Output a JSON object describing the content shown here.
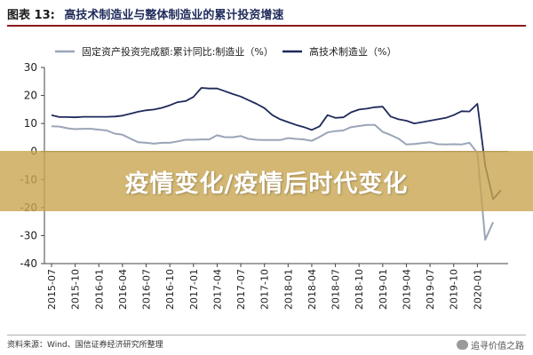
{
  "figure": {
    "number_label": "图表 13:",
    "title": "高技术制造业与整体制造业的累计投资增速"
  },
  "overlay_text": "疫情变化/疫情后时代变化",
  "source_text": "资料来源：Wind、国信证券经济研究所整理",
  "watermark_text": "追寻价值之路",
  "colors": {
    "series_fixed": "#9aa5b8",
    "series_hightech": "#1f2a5a",
    "accent_rule": "#8b1a1a"
  },
  "chart_data": {
    "type": "line",
    "title": "高技术制造业与整体制造业的累计投资增速",
    "ylim": [
      -40,
      30
    ],
    "yticks": [
      30,
      20,
      10,
      0,
      -10,
      -20,
      -30,
      -40
    ],
    "xticks": [
      "2015-07",
      "2015-10",
      "2016-01",
      "2016-04",
      "2016-07",
      "2016-10",
      "2017-01",
      "2017-04",
      "2017-07",
      "2017-10",
      "2018-01",
      "2018-04",
      "2018-07",
      "2018-10",
      "2019-01",
      "2019-04",
      "2019-07",
      "2019-10",
      "2020-01"
    ],
    "x": [
      "2015-07",
      "2015-08",
      "2015-09",
      "2015-10",
      "2015-11",
      "2015-12",
      "2016-01",
      "2016-02",
      "2016-03",
      "2016-04",
      "2016-05",
      "2016-06",
      "2016-07",
      "2016-08",
      "2016-09",
      "2016-10",
      "2016-11",
      "2016-12",
      "2017-01",
      "2017-02",
      "2017-03",
      "2017-04",
      "2017-05",
      "2017-06",
      "2017-07",
      "2017-08",
      "2017-09",
      "2017-10",
      "2017-11",
      "2017-12",
      "2018-01",
      "2018-02",
      "2018-03",
      "2018-04",
      "2018-05",
      "2018-06",
      "2018-07",
      "2018-08",
      "2018-09",
      "2018-10",
      "2018-11",
      "2018-12",
      "2019-01",
      "2019-02",
      "2019-03",
      "2019-04",
      "2019-05",
      "2019-06",
      "2019-07",
      "2019-08",
      "2019-09",
      "2019-10",
      "2019-11",
      "2019-12",
      "2020-01",
      "2020-02",
      "2020-03",
      "2020-04"
    ],
    "legend_position": "top",
    "series": [
      {
        "name": "固定资产投资完成额:累计同比:制造业（%）",
        "color": "#9aa5b8",
        "values": [
          9.0,
          8.9,
          8.3,
          8.0,
          8.1,
          8.1,
          7.8,
          7.5,
          6.4,
          6.0,
          4.6,
          3.3,
          3.1,
          2.8,
          3.1,
          3.1,
          3.6,
          4.2,
          4.2,
          4.3,
          4.3,
          5.8,
          5.1,
          5.1,
          5.5,
          4.5,
          4.2,
          4.1,
          4.1,
          4.1,
          4.8,
          4.5,
          4.3,
          3.8,
          5.2,
          6.8,
          7.3,
          7.5,
          8.7,
          9.1,
          9.5,
          9.5,
          7.0,
          5.9,
          4.6,
          2.5,
          2.7,
          3.0,
          3.3,
          2.6,
          2.5,
          2.6,
          2.5,
          3.1,
          -0.5,
          -31.5,
          -25.2,
          null
        ]
      },
      {
        "name": "高技术制造业（%）",
        "color": "#1f2a5a",
        "values": [
          13.0,
          12.3,
          12.3,
          12.2,
          12.4,
          12.4,
          12.4,
          12.4,
          12.5,
          12.8,
          13.5,
          14.2,
          14.7,
          15.0,
          15.6,
          16.5,
          17.6,
          18.0,
          19.5,
          22.7,
          22.5,
          22.5,
          21.5,
          20.5,
          19.6,
          18.3,
          17.0,
          15.5,
          13.0,
          11.5,
          10.5,
          9.5,
          8.7,
          7.7,
          9.0,
          13.0,
          12.0,
          12.2,
          14.0,
          15.0,
          15.3,
          15.8,
          16.0,
          12.5,
          11.5,
          11.0,
          10.0,
          10.5,
          11.0,
          11.5,
          12.0,
          13.0,
          14.4,
          14.3,
          17.0,
          -5.0,
          -17.0,
          -13.8
        ]
      }
    ]
  }
}
